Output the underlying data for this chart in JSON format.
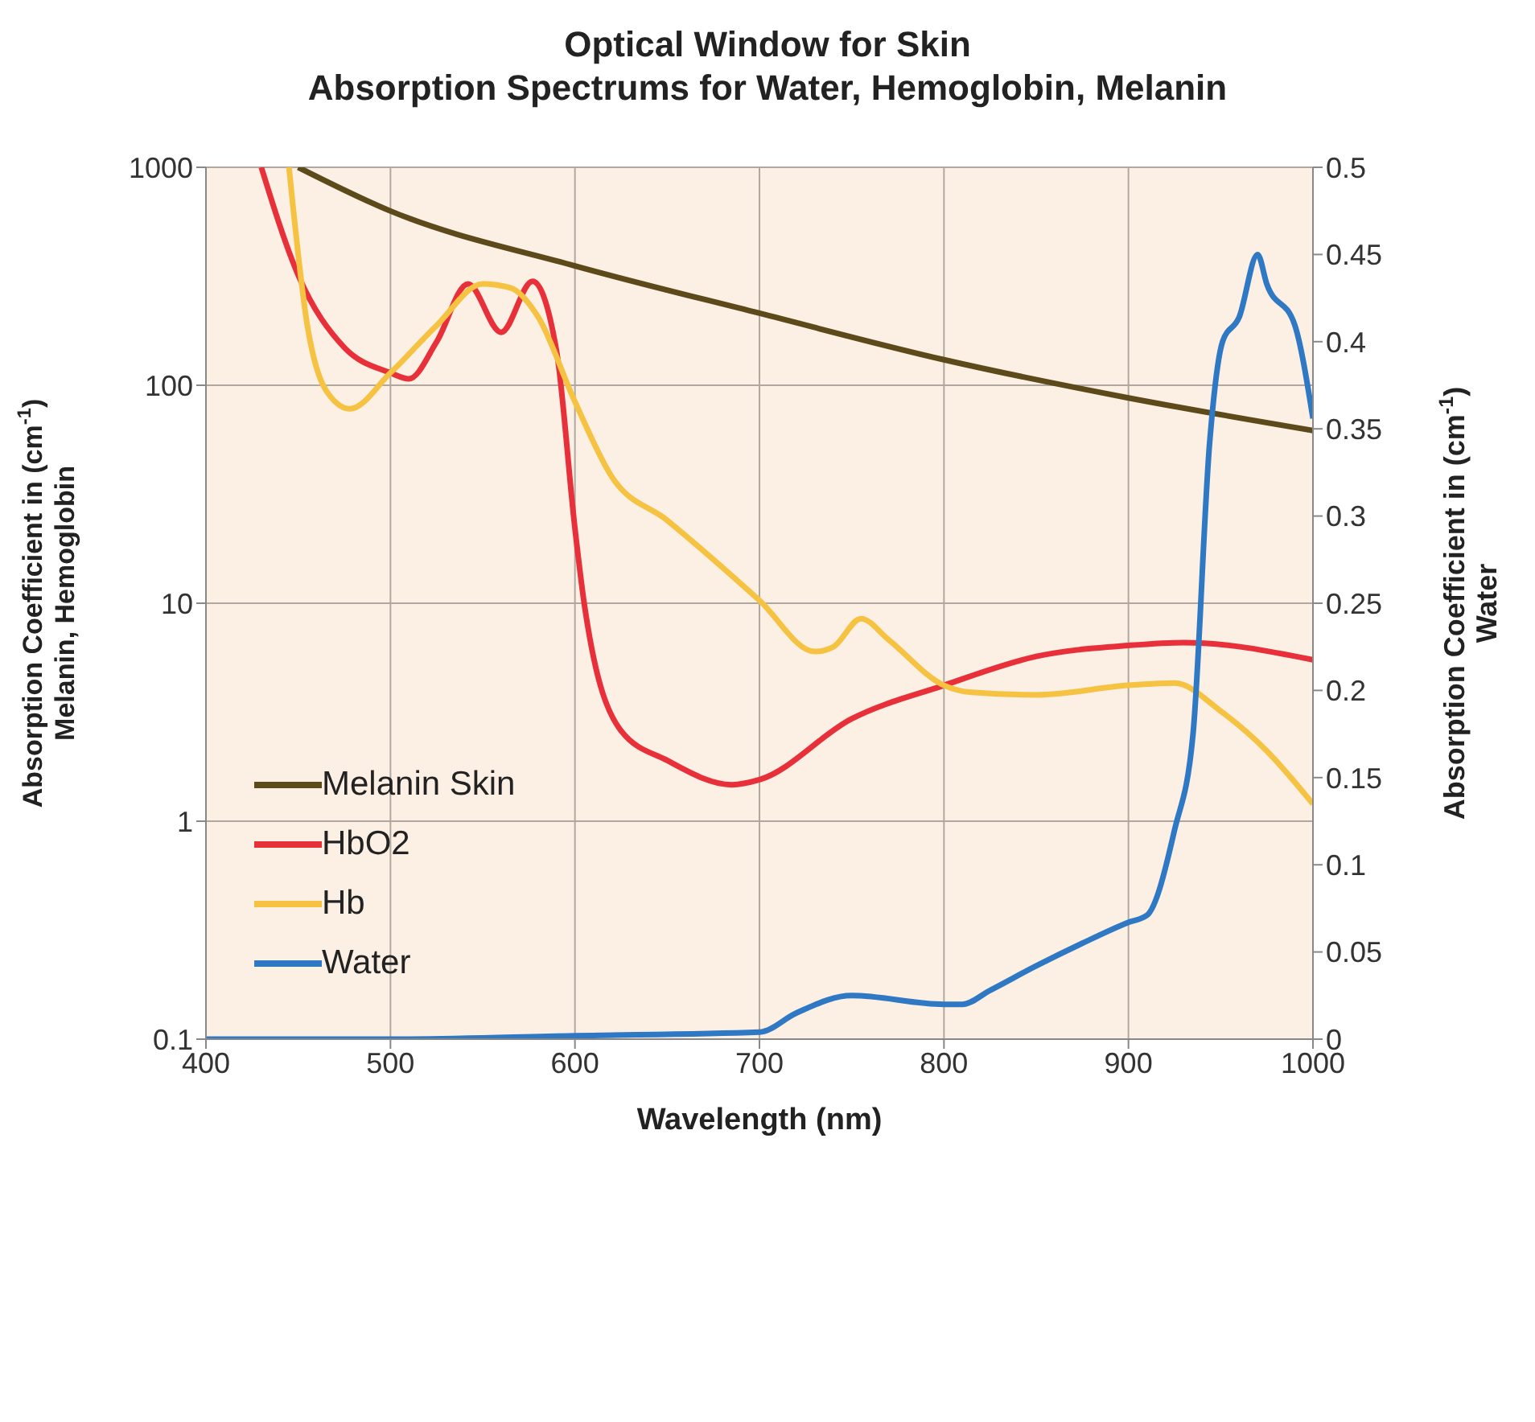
{
  "chart_data": {
    "type": "line",
    "title": "Optical Window for Skin\nAbsorption Spectrums for Water, Hemoglobin, Melanin",
    "xlabel": "Wavelength (nm)",
    "ylabel": "Absorption Coefficient in (cm$^{-1}$)\nMelanin, Hemoglobin",
    "y2label": "Absorption Coefficient in (cm$^{-1}$)\nWater",
    "xlim": [
      400,
      1000
    ],
    "xticks": [
      400,
      500,
      600,
      700,
      800,
      900,
      1000
    ],
    "ylim": [
      0.1,
      1000
    ],
    "yticks": [
      0.1,
      1,
      10,
      100,
      1000
    ],
    "y2lim": [
      0,
      0.5
    ],
    "y2ticks": [
      0,
      0.05,
      0.1,
      0.15,
      0.2,
      0.25,
      0.3,
      0.35,
      0.4,
      0.45,
      0.5
    ],
    "log": "y",
    "grid": true,
    "legend": "center left",
    "marker": "none",
    "line_style": "solid",
    "series": [
      {
        "name": "Melanin Skin",
        "color": "#5c4a1a",
        "x": [
          450,
          500,
          600,
          700,
          800,
          900,
          1000
        ],
        "values": [
          1000,
          630,
          353,
          214,
          131,
          87.5,
          62
        ]
      },
      {
        "name": "HbO2",
        "color": "#e8303a",
        "x": [
          430,
          450,
          475,
          500,
          510,
          525,
          542,
          560,
          577,
          590,
          600,
          605,
          625,
          650,
          685,
          700,
          750,
          800,
          850,
          900,
          930,
          1000
        ],
        "values": [
          1000,
          320,
          149,
          114,
          107,
          158,
          292,
          175,
          300,
          144,
          22,
          10,
          2.6,
          1.9,
          1.47,
          1.55,
          2.95,
          4.2,
          5.7,
          6.4,
          6.6,
          5.5
        ]
      },
      {
        "name": "Hb",
        "color": "#f5c242",
        "x": [
          445,
          455,
          465,
          478,
          500,
          525,
          550,
          565,
          580,
          600,
          620,
          650,
          700,
          730,
          740,
          755,
          770,
          800,
          815,
          850,
          900,
          925,
          950,
          975,
          1000
        ],
        "values": [
          1000,
          187,
          95,
          78,
          114,
          188,
          292,
          280,
          206,
          84,
          38,
          24,
          10.3,
          6,
          6.3,
          8.5,
          6.8,
          4.2,
          3.9,
          3.8,
          4.2,
          4.3,
          3.2,
          2.1,
          1.2
        ]
      },
      {
        "name": "Water",
        "color": "#2f78c4",
        "axis": "y2",
        "x": [
          400,
          500,
          600,
          700,
          720,
          750,
          800,
          810,
          825,
          850,
          875,
          900,
          910,
          925,
          935,
          944,
          951,
          960,
          970,
          975,
          990,
          1000
        ],
        "values": [
          0,
          0,
          0.002,
          0.004,
          0.015,
          0.025,
          0.02,
          0.02,
          0.028,
          0.042,
          0.055,
          0.067,
          0.071,
          0.12,
          0.175,
          0.342,
          0.4,
          0.414,
          0.45,
          0.433,
          0.41,
          0.356
        ]
      }
    ]
  }
}
